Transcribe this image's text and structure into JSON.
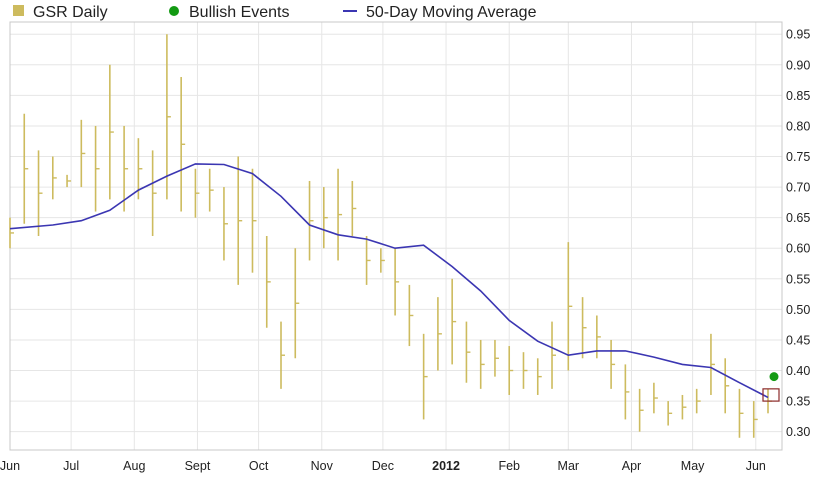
{
  "colors": {
    "bars": "#cdbb5e",
    "moving_average": "#3b36b2",
    "bullish": "#139a13",
    "highlight_box": "#8b2a2a",
    "grid": "#e6e6e6"
  },
  "legend": [
    {
      "label": "GSR Daily",
      "marker": "square"
    },
    {
      "label": "Bullish Events",
      "marker": "dot"
    },
    {
      "label": "50-Day Moving Average",
      "marker": "line"
    }
  ],
  "chart_data": {
    "type": "bar",
    "title": "",
    "xlabel": "",
    "ylabel": "",
    "ylim": [
      0.27,
      0.97
    ],
    "grid": true,
    "legend_position": "top-left",
    "y_ticks": [
      "0.30",
      "0.35",
      "0.40",
      "0.45",
      "0.50",
      "0.55",
      "0.60",
      "0.65",
      "0.70",
      "0.75",
      "0.80",
      "0.85",
      "0.90",
      "0.95"
    ],
    "x_ticks": [
      {
        "label": "Jun",
        "bold": false
      },
      {
        "label": "Jul",
        "bold": false
      },
      {
        "label": "Aug",
        "bold": false
      },
      {
        "label": "Sept",
        "bold": false
      },
      {
        "label": "Oct",
        "bold": false
      },
      {
        "label": "Nov",
        "bold": false
      },
      {
        "label": "Dec",
        "bold": false
      },
      {
        "label": "2012",
        "bold": true
      },
      {
        "label": "Feb",
        "bold": false
      },
      {
        "label": "Mar",
        "bold": false
      },
      {
        "label": "Apr",
        "bold": false
      },
      {
        "label": "May",
        "bold": false
      },
      {
        "label": "Jun",
        "bold": false
      }
    ],
    "series": [
      {
        "name": "GSR Daily",
        "kind": "high-low range per week",
        "points": [
          {
            "x": "Jun 1",
            "low": 0.6,
            "high": 0.65
          },
          {
            "x": "Jun 8",
            "low": 0.64,
            "high": 0.82
          },
          {
            "x": "Jun 15",
            "low": 0.62,
            "high": 0.76
          },
          {
            "x": "Jun 22",
            "low": 0.68,
            "high": 0.75
          },
          {
            "x": "Jun 29",
            "low": 0.7,
            "high": 0.72
          },
          {
            "x": "Jul 6",
            "low": 0.7,
            "high": 0.81
          },
          {
            "x": "Jul 13",
            "low": 0.66,
            "high": 0.8
          },
          {
            "x": "Jul 20",
            "low": 0.68,
            "high": 0.9
          },
          {
            "x": "Jul 27",
            "low": 0.66,
            "high": 0.8
          },
          {
            "x": "Aug 3",
            "low": 0.68,
            "high": 0.78
          },
          {
            "x": "Aug 10",
            "low": 0.62,
            "high": 0.76
          },
          {
            "x": "Aug 17",
            "low": 0.68,
            "high": 0.95
          },
          {
            "x": "Aug 24",
            "low": 0.66,
            "high": 0.88
          },
          {
            "x": "Aug 31",
            "low": 0.65,
            "high": 0.73
          },
          {
            "x": "Sep 7",
            "low": 0.66,
            "high": 0.73
          },
          {
            "x": "Sep 14",
            "low": 0.58,
            "high": 0.7
          },
          {
            "x": "Sep 21",
            "low": 0.54,
            "high": 0.75
          },
          {
            "x": "Sep 28",
            "low": 0.56,
            "high": 0.73
          },
          {
            "x": "Oct 5",
            "low": 0.47,
            "high": 0.62
          },
          {
            "x": "Oct 12",
            "low": 0.37,
            "high": 0.48
          },
          {
            "x": "Oct 19",
            "low": 0.42,
            "high": 0.6
          },
          {
            "x": "Oct 26",
            "low": 0.58,
            "high": 0.71
          },
          {
            "x": "Nov 2",
            "low": 0.6,
            "high": 0.7
          },
          {
            "x": "Nov 9",
            "low": 0.58,
            "high": 0.73
          },
          {
            "x": "Nov 16",
            "low": 0.62,
            "high": 0.71
          },
          {
            "x": "Nov 23",
            "low": 0.54,
            "high": 0.62
          },
          {
            "x": "Nov 30",
            "low": 0.56,
            "high": 0.6
          },
          {
            "x": "Dec 7",
            "low": 0.49,
            "high": 0.6
          },
          {
            "x": "Dec 14",
            "low": 0.44,
            "high": 0.54
          },
          {
            "x": "Dec 21",
            "low": 0.32,
            "high": 0.46
          },
          {
            "x": "Dec 28",
            "low": 0.4,
            "high": 0.52
          },
          {
            "x": "Jan 4",
            "low": 0.41,
            "high": 0.55
          },
          {
            "x": "Jan 11",
            "low": 0.38,
            "high": 0.48
          },
          {
            "x": "Jan 18",
            "low": 0.37,
            "high": 0.45
          },
          {
            "x": "Jan 25",
            "low": 0.39,
            "high": 0.45
          },
          {
            "x": "Feb 1",
            "low": 0.36,
            "high": 0.44
          },
          {
            "x": "Feb 8",
            "low": 0.37,
            "high": 0.43
          },
          {
            "x": "Feb 15",
            "low": 0.36,
            "high": 0.42
          },
          {
            "x": "Feb 22",
            "low": 0.37,
            "high": 0.48
          },
          {
            "x": "Mar 1",
            "low": 0.4,
            "high": 0.61
          },
          {
            "x": "Mar 8",
            "low": 0.42,
            "high": 0.52
          },
          {
            "x": "Mar 15",
            "low": 0.42,
            "high": 0.49
          },
          {
            "x": "Mar 22",
            "low": 0.37,
            "high": 0.45
          },
          {
            "x": "Mar 29",
            "low": 0.32,
            "high": 0.41
          },
          {
            "x": "Apr 5",
            "low": 0.3,
            "high": 0.37
          },
          {
            "x": "Apr 12",
            "low": 0.33,
            "high": 0.38
          },
          {
            "x": "Apr 19",
            "low": 0.31,
            "high": 0.35
          },
          {
            "x": "Apr 26",
            "low": 0.32,
            "high": 0.36
          },
          {
            "x": "May 3",
            "low": 0.33,
            "high": 0.37
          },
          {
            "x": "May 10",
            "low": 0.36,
            "high": 0.46
          },
          {
            "x": "May 17",
            "low": 0.33,
            "high": 0.42
          },
          {
            "x": "May 24",
            "low": 0.29,
            "high": 0.37
          },
          {
            "x": "May 31",
            "low": 0.29,
            "high": 0.35
          },
          {
            "x": "Jun 7",
            "low": 0.33,
            "high": 0.37
          }
        ]
      },
      {
        "name": "50-Day Moving Average",
        "kind": "line",
        "points": [
          {
            "x": "Jun 1",
            "y": 0.632
          },
          {
            "x": "Jun 22",
            "y": 0.638
          },
          {
            "x": "Jul 6",
            "y": 0.645
          },
          {
            "x": "Jul 20",
            "y": 0.662
          },
          {
            "x": "Aug 3",
            "y": 0.695
          },
          {
            "x": "Aug 17",
            "y": 0.718
          },
          {
            "x": "Aug 31",
            "y": 0.738
          },
          {
            "x": "Sep 14",
            "y": 0.737
          },
          {
            "x": "Sep 28",
            "y": 0.722
          },
          {
            "x": "Oct 12",
            "y": 0.685
          },
          {
            "x": "Oct 26",
            "y": 0.638
          },
          {
            "x": "Nov 9",
            "y": 0.622
          },
          {
            "x": "Nov 23",
            "y": 0.615
          },
          {
            "x": "Dec 7",
            "y": 0.6
          },
          {
            "x": "Dec 21",
            "y": 0.605
          },
          {
            "x": "Jan 4",
            "y": 0.57
          },
          {
            "x": "Jan 18",
            "y": 0.53
          },
          {
            "x": "Feb 1",
            "y": 0.482
          },
          {
            "x": "Feb 15",
            "y": 0.448
          },
          {
            "x": "Mar 1",
            "y": 0.425
          },
          {
            "x": "Mar 15",
            "y": 0.432
          },
          {
            "x": "Mar 29",
            "y": 0.432
          },
          {
            "x": "Apr 12",
            "y": 0.422
          },
          {
            "x": "Apr 26",
            "y": 0.41
          },
          {
            "x": "May 10",
            "y": 0.405
          },
          {
            "x": "May 24",
            "y": 0.38
          },
          {
            "x": "Jun 7",
            "y": 0.356
          }
        ]
      }
    ],
    "bullish_events": [
      {
        "x": "Jun 7",
        "y": 0.39
      }
    ],
    "highlight": {
      "x": "Jun 7",
      "low": 0.35,
      "high": 0.37
    }
  }
}
